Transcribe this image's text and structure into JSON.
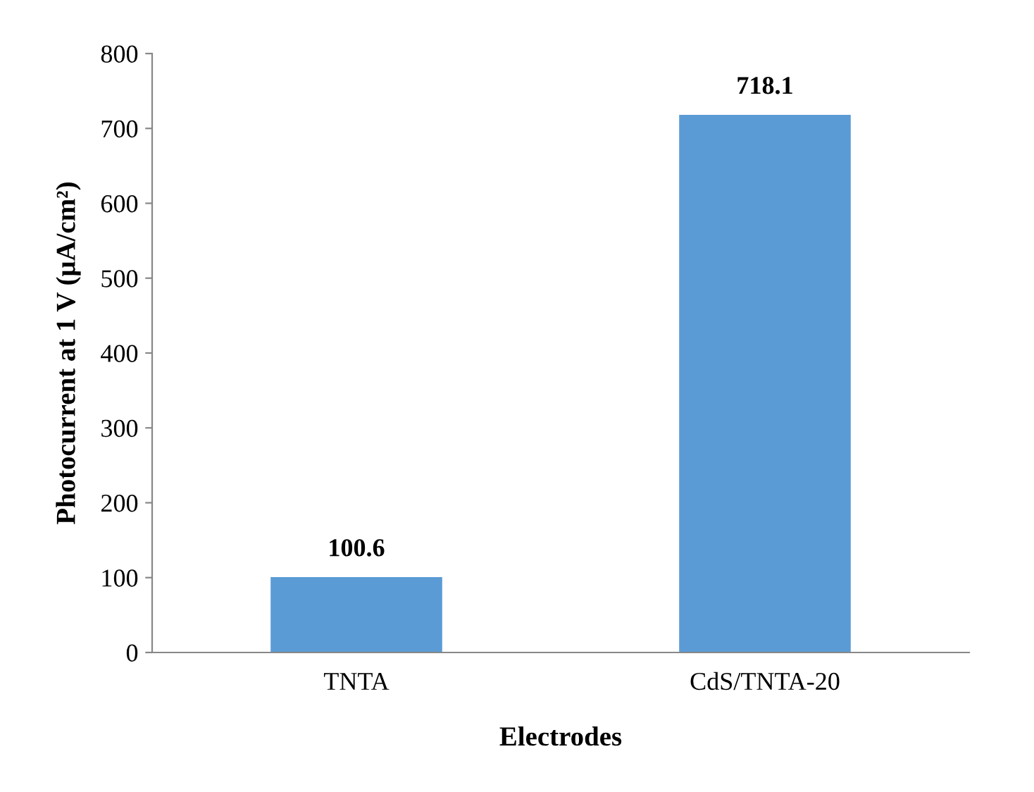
{
  "chart_data": {
    "type": "bar",
    "xlabel": "Electrodes",
    "ylabel": "Photocurrent at 1 V (μA/cm²)",
    "categories": [
      "TNTA",
      "CdS/TNTA-20"
    ],
    "values": [
      100.6,
      718.1
    ],
    "color": "#5b9bd5",
    "ylim": [
      0,
      800
    ],
    "yticks": [
      0,
      100,
      200,
      300,
      400,
      500,
      600,
      700,
      800
    ],
    "data_labels": true,
    "grid": false,
    "legend": false
  }
}
